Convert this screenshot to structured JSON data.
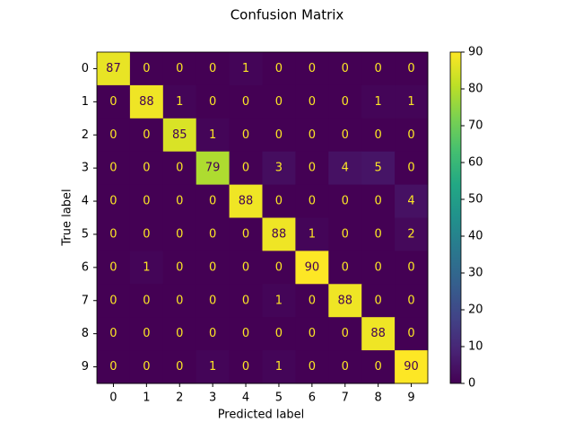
{
  "chart_data": {
    "type": "heatmap",
    "title": "Confusion Matrix",
    "xlabel": "Predicted label",
    "ylabel": "True label",
    "x_categories": [
      "0",
      "1",
      "2",
      "3",
      "4",
      "5",
      "6",
      "7",
      "8",
      "9"
    ],
    "y_categories": [
      "0",
      "1",
      "2",
      "3",
      "4",
      "5",
      "6",
      "7",
      "8",
      "9"
    ],
    "values": [
      [
        87,
        0,
        0,
        0,
        1,
        0,
        0,
        0,
        0,
        0
      ],
      [
        0,
        88,
        1,
        0,
        0,
        0,
        0,
        0,
        1,
        1
      ],
      [
        0,
        0,
        85,
        1,
        0,
        0,
        0,
        0,
        0,
        0
      ],
      [
        0,
        0,
        0,
        79,
        0,
        3,
        0,
        4,
        5,
        0
      ],
      [
        0,
        0,
        0,
        0,
        88,
        0,
        0,
        0,
        0,
        4
      ],
      [
        0,
        0,
        0,
        0,
        0,
        88,
        1,
        0,
        0,
        2
      ],
      [
        0,
        1,
        0,
        0,
        0,
        0,
        90,
        0,
        0,
        0
      ],
      [
        0,
        0,
        0,
        0,
        0,
        1,
        0,
        88,
        0,
        0
      ],
      [
        0,
        0,
        0,
        0,
        0,
        0,
        0,
        0,
        88,
        0
      ],
      [
        0,
        0,
        0,
        1,
        0,
        1,
        0,
        0,
        0,
        90
      ]
    ],
    "colormap": "viridis",
    "clim": [
      0,
      90
    ],
    "colorbar_ticks": [
      0,
      10,
      20,
      30,
      40,
      50,
      60,
      70,
      80,
      90
    ]
  }
}
